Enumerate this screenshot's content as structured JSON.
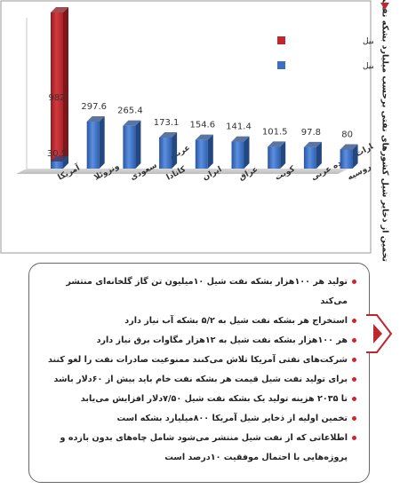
{
  "chart_data": {
    "type": "bar",
    "title": "تخمین از ذخایر شیل کشورهای نفتی برحسب میلیارد بشکه نفت",
    "categories": [
      "آمریکا",
      "ونزوئلا",
      "عربستان سعودی",
      "کانادا",
      "ایران",
      "عراق",
      "کویت",
      "امارات متحده عربی",
      "روسیه"
    ],
    "series": [
      {
        "name": "ذخایر قابل برداشت شیل",
        "color": "#c0262c",
        "values": [
          982,
          null,
          null,
          null,
          null,
          null,
          null,
          null,
          null
        ]
      },
      {
        "name": "ذخایر درجای شیل",
        "color": "#3c6fc2",
        "values": [
          30.5,
          297.6,
          265.4,
          173.1,
          154.6,
          141.4,
          101.5,
          97.8,
          80
        ]
      }
    ],
    "data_labels": [
      "982",
      "30.5",
      "297.6",
      "265.4",
      "173.1",
      "154.6",
      "141.4",
      "101.5",
      "97.8",
      "80"
    ],
    "legend_position": "top-right",
    "grid": false
  },
  "notes": [
    "تولید هر ۱۰۰هزار بشکه نفت شیل ۱۰میلیون تن گاز گلخانه‌ای منتشر می‌کند",
    "استخراج هر بشکه نفت شیل به ۵/۲ بشکه آب نیاز دارد",
    "هر ۱۰۰هزار بشکه نفت شیل به ۱۲هزار مگاوات برق نیاز دارد",
    "شرکت‌های نفتی آمریکا تلاش می‌کنند ممنوعیت صادرات نفت را لغو کنند",
    "برای تولید نفت شیل قیمت هر بشکه نفت خام باید بیش از ۶۰دلار باشد",
    "تا ۲۰۳۵ هزینه تولید یک بشکه نفت شیل ۷/۵۰دلار افزایش می‌یابد",
    "تخمین اولیه از ذخایر شیل آمریکا ۸۰۰میلیارد بشکه است",
    "اطلاعاتی که از نفت شیل منتشر می‌شود شامل چاه‌های بدون بازده و پروژه‌هایی با احتمال موفقیت ۱۰درصد است"
  ],
  "colors": {
    "accent_red": "#c0262c",
    "bar_blue": "#3c6fc2"
  }
}
